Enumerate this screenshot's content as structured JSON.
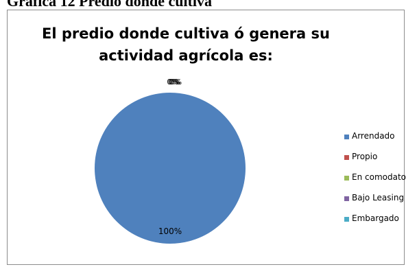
{
  "caption": "Gráfica  12 Predio  donde  cultiva",
  "chart_data": {
    "type": "pie",
    "title_lines": [
      "El predio donde cultiva ó genera su",
      "actividad agrícola es:"
    ],
    "categories": [
      "Arrendado",
      "Propio",
      "En comodato",
      "Bajo Leasing",
      "Embargado"
    ],
    "values": [
      100,
      0,
      0,
      0,
      0
    ],
    "data_labels": [
      "100%",
      "0%",
      "0%",
      "0%",
      "0%"
    ],
    "colors": [
      "#4f81bd",
      "#c0504d",
      "#9bbb59",
      "#8064a2",
      "#4bacc6"
    ],
    "legend_position": "right"
  }
}
